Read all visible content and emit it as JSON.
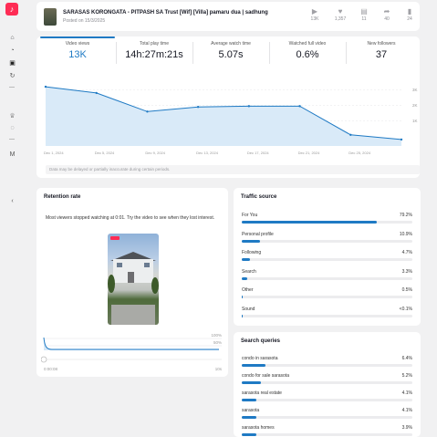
{
  "app": {
    "logo_icon": "tiktok-logo-icon",
    "accent": "#fe2c55",
    "primary": "#1f7ac4"
  },
  "sidebar": {
    "icons": [
      "home-icon",
      "chart-icon",
      "video-icon",
      "refresh-icon",
      "trophy-icon",
      "lightbulb-icon",
      "gmail-icon",
      "collapse-icon"
    ]
  },
  "video": {
    "title": "SARASAS KORONGATA - PITPASH SA Trust [Wif] [Villa] pamaru dua | sadhung",
    "posted": "Posted on 15/3/2025",
    "stats": [
      {
        "icon": "play-icon",
        "value": "13K"
      },
      {
        "icon": "heart-icon",
        "value": "1,357"
      },
      {
        "icon": "comment-icon",
        "value": "11"
      },
      {
        "icon": "share-icon",
        "value": "40"
      },
      {
        "icon": "bookmark-icon",
        "value": "24"
      }
    ]
  },
  "metrics": [
    {
      "label": "Video views",
      "value": "13K"
    },
    {
      "label": "Total play time",
      "value": "14h:27m:21s"
    },
    {
      "label": "Average watch time",
      "value": "5.07s"
    },
    {
      "label": "Watched full video",
      "value": "0.6%"
    },
    {
      "label": "New followers",
      "value": "37"
    }
  ],
  "chart": {
    "note": "Data may be delayed or partially inaccurate during certain periods."
  },
  "chart_data": {
    "type": "area",
    "x": [
      "Dec 1",
      "Dec 5",
      "Dec 9",
      "Dec 13",
      "Dec 17",
      "Dec 21",
      "Dec 25",
      "Dec 29"
    ],
    "xlabels": [
      "Dec 1, 2024",
      "Dec 5, 2024",
      "Dec 9, 2024",
      "Dec 13, 2024",
      "Dec 17, 2024",
      "Dec 21, 2024",
      "Dec 25, 2024"
    ],
    "values": [
      3.2,
      2.8,
      1.6,
      1.9,
      1.95,
      1.95,
      0.1,
      -0.2
    ],
    "yticks": [
      "3K",
      "2K",
      "1K"
    ],
    "ylim": [
      -0.5,
      3.5
    ],
    "grid": true,
    "series_color": "#1f7ac4"
  },
  "retention": {
    "title": "Retention rate",
    "description": "Most viewers stopped watching at 0:01. Try the video to see when they lost interest.",
    "y_labels": [
      "100%",
      "50%"
    ],
    "x_start": "0:00:08",
    "x_end": "10s"
  },
  "traffic": {
    "title": "Traffic source",
    "rows": [
      {
        "label": "For You",
        "value": "79.2%",
        "pct": 79.2
      },
      {
        "label": "Personal profile",
        "value": "10.9%",
        "pct": 10.9
      },
      {
        "label": "Following",
        "value": "4.7%",
        "pct": 4.7
      },
      {
        "label": "Search",
        "value": "3.3%",
        "pct": 3.3
      },
      {
        "label": "Other",
        "value": "0.5%",
        "pct": 0.5
      },
      {
        "label": "Sound",
        "value": "<0.1%",
        "pct": 0.1
      }
    ]
  },
  "search": {
    "title": "Search queries",
    "rows": [
      {
        "label": "condo in sarasota",
        "value": "6.4%",
        "pct": 6.4
      },
      {
        "label": "condo for sale sarasota",
        "value": "5.2%",
        "pct": 5.2
      },
      {
        "label": "sarasota real estate",
        "value": "4.1%",
        "pct": 4.1
      },
      {
        "label": "sarasota",
        "value": "4.1%",
        "pct": 4.1
      },
      {
        "label": "sarasota homes",
        "value": "3.9%",
        "pct": 3.9
      }
    ]
  }
}
